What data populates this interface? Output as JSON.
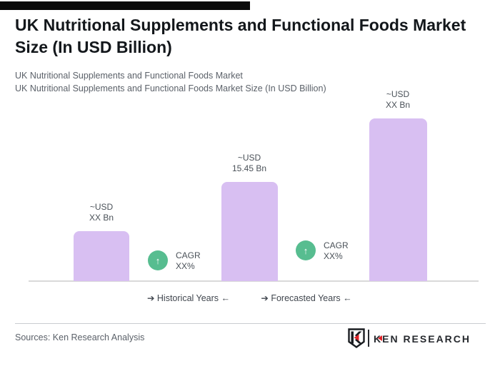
{
  "header": {
    "title": "UK Nutritional Supplements and Functional Foods Market Size (In USD Billion)",
    "subtitle_line1": "UK Nutritional Supplements and Functional Foods Market",
    "subtitle_line2": "UK Nutritional Supplements and Functional Foods Market Size (In USD Billion)"
  },
  "chart_data": {
    "type": "bar",
    "title": "UK Nutritional Supplements and Functional Foods Market Size (In USD Billion)",
    "unit": "USD Billion",
    "grid": false,
    "legend": "none",
    "ylim": [
      0,
      26
    ],
    "values_estimated_from_bar_heights": true,
    "bars": [
      {
        "name": "historical-start",
        "label_lines": [
          "~USD",
          "XX Bn"
        ],
        "value_shown": "XX",
        "value_est": 7.8
      },
      {
        "name": "historical-end",
        "label_lines": [
          "~USD",
          "15.45 Bn"
        ],
        "value_shown": "15.45",
        "value_est": 15.45
      },
      {
        "name": "forecast-end",
        "label_lines": [
          "~USD",
          "XX Bn"
        ],
        "value_shown": "XX",
        "value_est": 25.3
      }
    ],
    "cagr_badges": [
      {
        "lines": [
          "CAGR",
          "XX%"
        ]
      },
      {
        "lines": [
          "CAGR",
          "XX%"
        ]
      }
    ],
    "group_labels": [
      {
        "text": "Historical Years",
        "arrow_before": "➔",
        "arrow_after": "←"
      },
      {
        "text": "Forecasted Years",
        "arrow_before": "➔",
        "arrow_after": "←"
      }
    ],
    "bar_color": "#d8bff2",
    "badge_color": "#57bd90",
    "badge_arrow": "↑",
    "label_color": "#4a5158",
    "baseline_color": "#d9d9d9"
  },
  "footer": {
    "sources": "Sources: Ken Research Analysis",
    "logo_text": "KEN RESEARCH",
    "logo_red": "#e02227",
    "logo_dark": "#26292e"
  }
}
